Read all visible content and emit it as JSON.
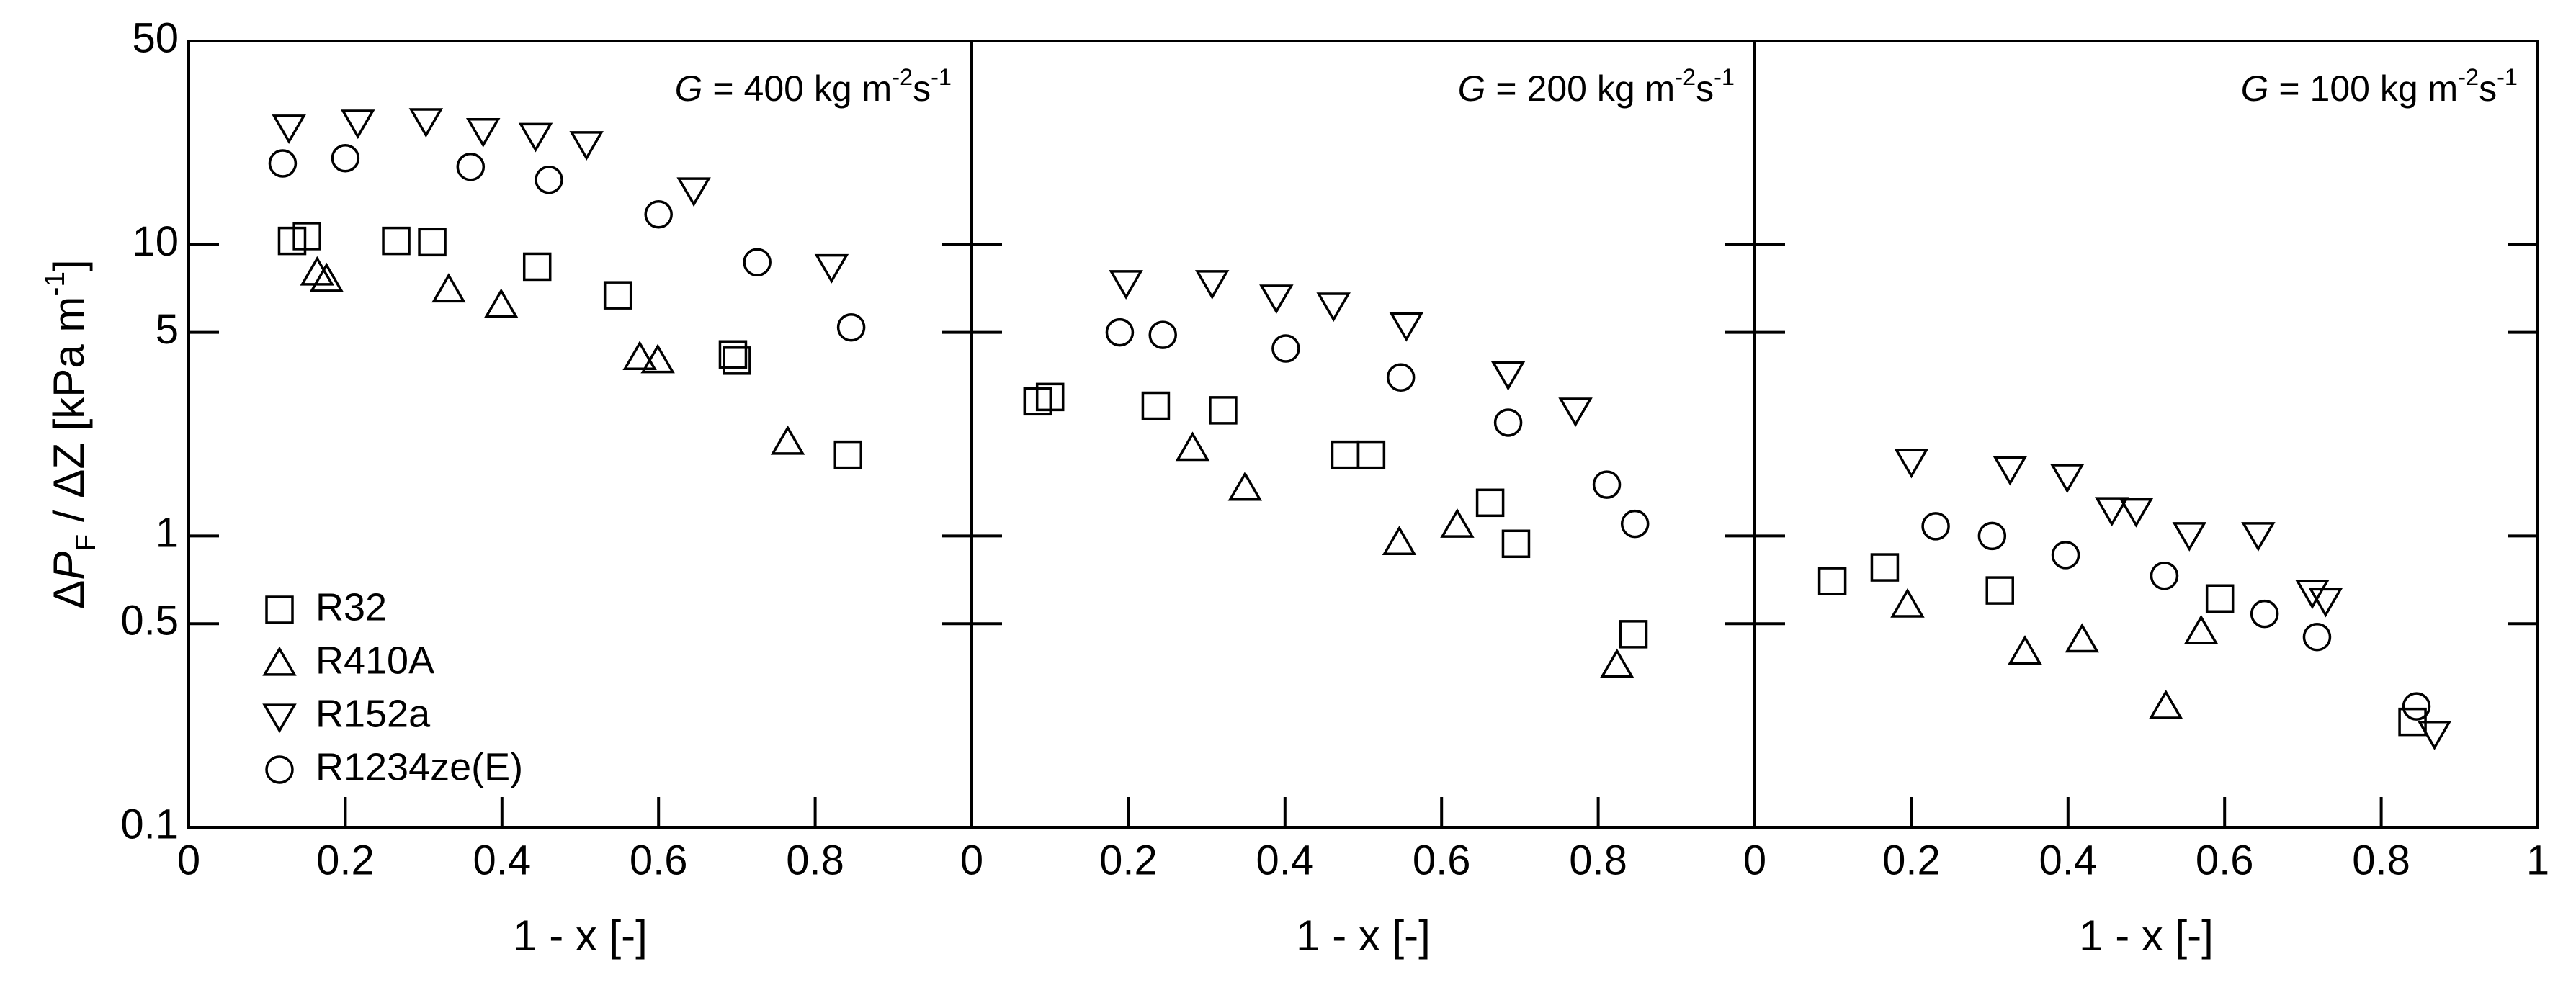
{
  "chart_data": [
    {
      "type": "scatter",
      "annotation": [
        "G",
        " = 400 kg m",
        "-2",
        "s",
        "-1"
      ],
      "xlabel": "1 - x [-]",
      "ylabel": [
        "Δ",
        "P",
        "F",
        " / ΔZ [kPa m",
        "-1",
        "]"
      ],
      "xlim": [
        0,
        1
      ],
      "xticks": [
        0,
        0.2,
        0.4,
        0.6,
        0.8
      ],
      "ylim": [
        0.1,
        50
      ],
      "yticks": [
        0.1,
        0.5,
        1,
        5,
        10,
        50
      ],
      "log_y": true,
      "legend": "lower left",
      "series": [
        {
          "name": "R32",
          "marker": "square",
          "color": "#000000",
          "x": [
            0.132,
            0.151,
            0.265,
            0.311,
            0.445,
            0.548,
            0.695,
            0.7,
            0.842
          ],
          "values": [
            10.3,
            10.7,
            10.3,
            10.2,
            8.4,
            6.7,
            4.2,
            4.0,
            1.9
          ]
        },
        {
          "name": "R410A",
          "marker": "triangle-up",
          "color": "#000000",
          "x": [
            0.164,
            0.176,
            0.332,
            0.399,
            0.576,
            0.599,
            0.765
          ],
          "values": [
            8.0,
            7.6,
            7.0,
            6.2,
            4.1,
            4.0,
            2.1
          ]
        },
        {
          "name": "R152a",
          "marker": "triangle-down",
          "color": "#000000",
          "x": [
            0.128,
            0.216,
            0.303,
            0.376,
            0.443,
            0.508,
            0.645,
            0.821
          ],
          "values": [
            25.3,
            26.3,
            26.6,
            24.6,
            23.7,
            22.2,
            15.4,
            8.4
          ]
        },
        {
          "name": "R1234ze(E)",
          "marker": "circle",
          "color": "#000000",
          "x": [
            0.12,
            0.2,
            0.36,
            0.46,
            0.6,
            0.726,
            0.846
          ],
          "values": [
            19.0,
            19.8,
            18.5,
            16.7,
            12.7,
            8.7,
            5.2
          ]
        }
      ]
    },
    {
      "type": "scatter",
      "annotation": [
        "G",
        " = 200 kg m",
        "-2",
        "s",
        "-1"
      ],
      "xlabel": "1 - x [-]",
      "xlim": [
        0,
        1
      ],
      "xticks": [
        0,
        0.2,
        0.4,
        0.6,
        0.8
      ],
      "ylim": [
        0.1,
        50
      ],
      "yticks": [
        0.1,
        0.5,
        1,
        5,
        10,
        50
      ],
      "log_y": true,
      "series": [
        {
          "marker": "square",
          "color": "#000000",
          "x": [
            0.084,
            0.1,
            0.235,
            0.321,
            0.477,
            0.51,
            0.662,
            0.695,
            0.845
          ],
          "values": [
            2.9,
            3.0,
            2.8,
            2.7,
            1.9,
            1.9,
            1.3,
            0.94,
            0.46
          ]
        },
        {
          "marker": "triangle-up",
          "color": "#000000",
          "x": [
            0.282,
            0.349,
            0.546,
            0.62,
            0.824
          ],
          "values": [
            2.0,
            1.46,
            0.95,
            1.09,
            0.36
          ]
        },
        {
          "marker": "triangle-down",
          "color": "#000000",
          "x": [
            0.197,
            0.307,
            0.389,
            0.462,
            0.555,
            0.685,
            0.771
          ],
          "values": [
            7.4,
            7.4,
            6.6,
            6.2,
            5.3,
            3.6,
            2.7
          ]
        },
        {
          "marker": "circle",
          "color": "#000000",
          "x": [
            0.189,
            0.244,
            0.401,
            0.548,
            0.685,
            0.811,
            0.847
          ],
          "values": [
            5.0,
            4.9,
            4.4,
            3.5,
            2.45,
            1.5,
            1.1
          ]
        }
      ]
    },
    {
      "type": "scatter",
      "annotation": [
        "G",
        " = 100 kg m",
        "-2",
        "s",
        "-1"
      ],
      "xlabel": "1 - x [-]",
      "xlim": [
        0,
        1
      ],
      "xticks": [
        0,
        0.2,
        0.4,
        0.6,
        0.8,
        1
      ],
      "ylim": [
        0.1,
        50
      ],
      "yticks": [
        0.1,
        0.5,
        1,
        5,
        10,
        50
      ],
      "log_y": true,
      "series": [
        {
          "marker": "square",
          "color": "#000000",
          "x": [
            0.099,
            0.166,
            0.313,
            0.594,
            0.84
          ],
          "values": [
            0.7,
            0.78,
            0.65,
            0.61,
            0.23
          ]
        },
        {
          "marker": "triangle-up",
          "color": "#000000",
          "x": [
            0.195,
            0.345,
            0.418,
            0.525,
            0.57
          ],
          "values": [
            0.58,
            0.4,
            0.44,
            0.26,
            0.47
          ]
        },
        {
          "marker": "triangle-down",
          "color": "#000000",
          "x": [
            0.2,
            0.326,
            0.399,
            0.456,
            0.487,
            0.555,
            0.643,
            0.712,
            0.729,
            0.868
          ],
          "values": [
            1.8,
            1.7,
            1.6,
            1.23,
            1.22,
            1.01,
            1.01,
            0.64,
            0.6,
            0.21
          ]
        },
        {
          "marker": "circle",
          "color": "#000000",
          "x": [
            0.231,
            0.303,
            0.397,
            0.523,
            0.651,
            0.718,
            0.845
          ],
          "values": [
            1.08,
            1.0,
            0.86,
            0.73,
            0.54,
            0.45,
            0.26
          ]
        }
      ]
    }
  ]
}
